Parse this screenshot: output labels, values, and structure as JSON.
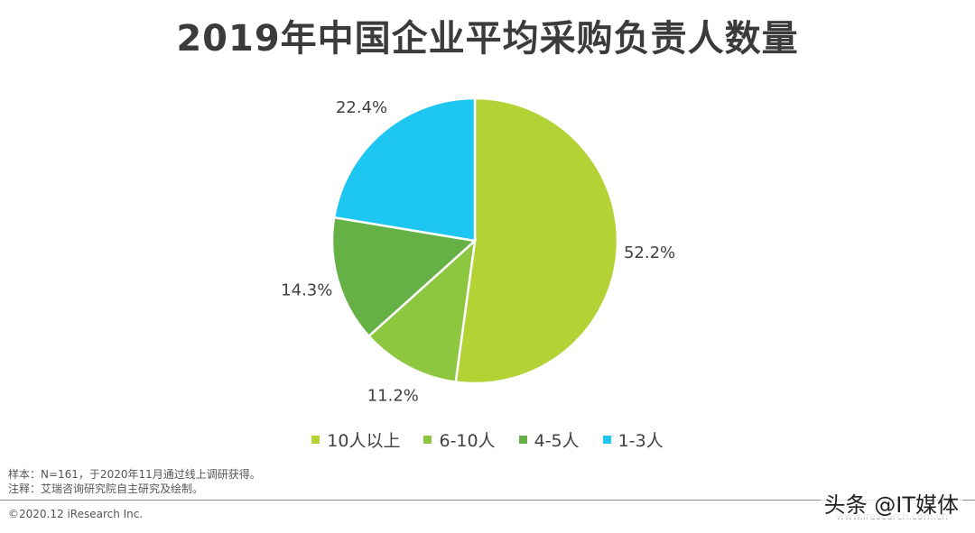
{
  "title": "2019年中国企业平均采购负责人数量",
  "chart_data": {
    "type": "pie",
    "title": "2019年中国企业平均采购负责人数量",
    "slices": [
      {
        "label": "10人以上",
        "value": 52.2,
        "display": "52.2%",
        "color": "#b2d235"
      },
      {
        "label": "6-10人",
        "value": 11.2,
        "display": "11.2%",
        "color": "#8dc63f"
      },
      {
        "label": "4-5人",
        "value": 14.3,
        "display": "14.3%",
        "color": "#65b145"
      },
      {
        "label": "1-3人",
        "value": 22.4,
        "display": "22.4%",
        "color": "#1ec6f2"
      }
    ],
    "start": "12 o'clock",
    "direction": "clockwise",
    "legend_position": "bottom"
  },
  "notes": {
    "sample": "样本：N=161，于2020年11月通过线上调研获得。",
    "source": "注释：艾瑞咨询研究院自主研究及绘制。"
  },
  "footer": {
    "copyright": "©2020.12 iResearch Inc.",
    "website": "www.iresearch.com.cn"
  },
  "watermark": "头条 @IT媒体"
}
